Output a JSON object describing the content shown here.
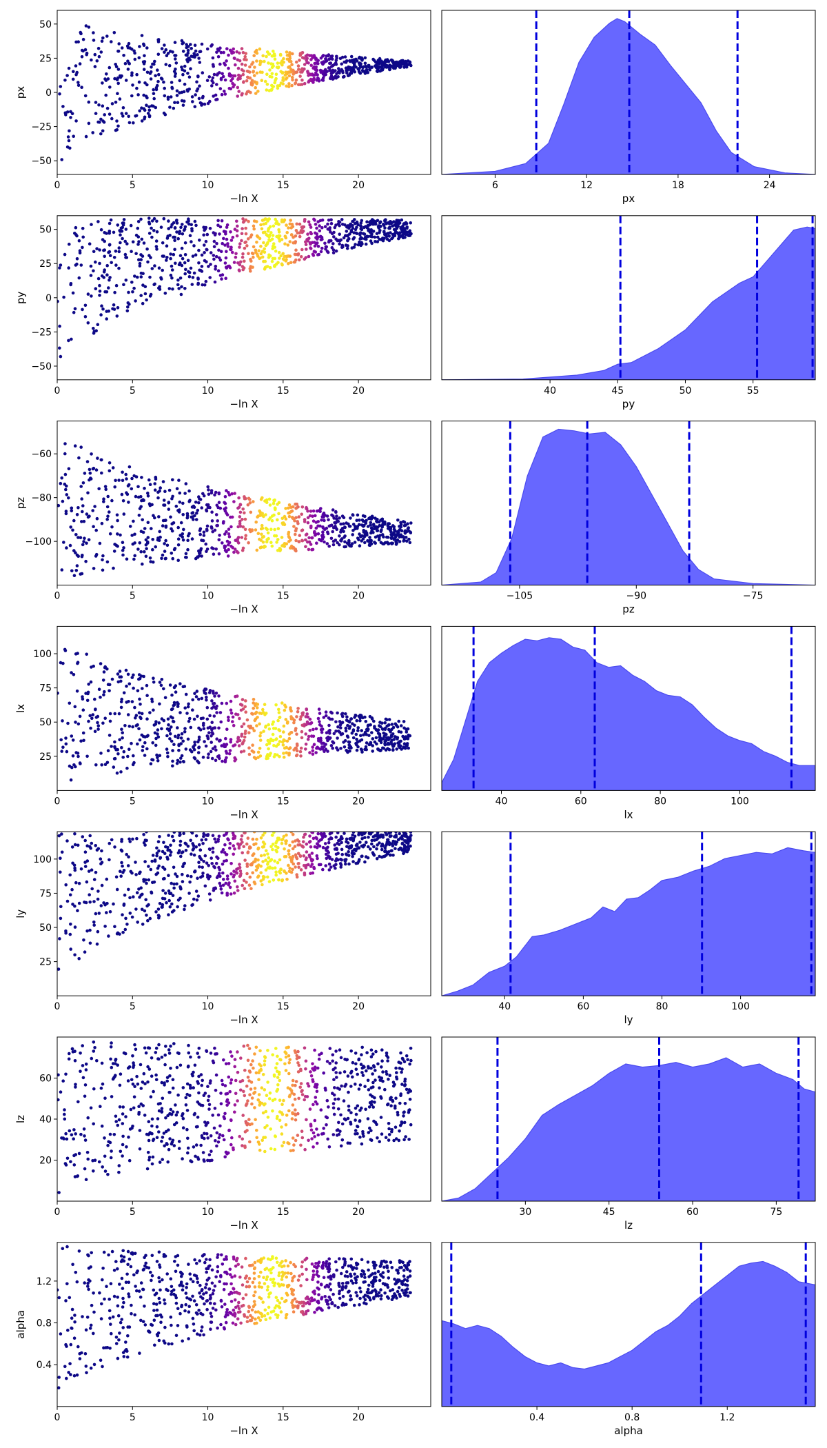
{
  "chart_data": {
    "type": "scatter",
    "xlabel_scatter": "−ln X",
    "colormap": "plasma",
    "kde_color": "#6464ff",
    "quantile_line_color": "#0000dd",
    "scatter_xlim": [
      0,
      24.8
    ],
    "scatter_xticks": [
      0,
      5,
      10,
      15,
      20
    ],
    "peak_lnX": 14.3,
    "panels": [
      {
        "name": "px",
        "scatter": {
          "ylim": [
            -60,
            60
          ],
          "yticks": [
            -50,
            -25,
            0,
            25,
            50
          ],
          "envelope_end": [
            19,
            23
          ],
          "spread_at_zero": [
            -60,
            60
          ]
        },
        "kde": {
          "xlim": [
            2.5,
            27
          ],
          "xticks": [
            6,
            12,
            18,
            24
          ],
          "xticklabels": [
            "6",
            "12",
            "18",
            "24"
          ],
          "quantiles": [
            8.7,
            14.8,
            21.9
          ],
          "curve": [
            [
              2.5,
              0.0
            ],
            [
              6,
              0.02
            ],
            [
              8,
              0.07
            ],
            [
              9.5,
              0.2
            ],
            [
              10.5,
              0.45
            ],
            [
              11.5,
              0.72
            ],
            [
              12.5,
              0.88
            ],
            [
              13.5,
              0.97
            ],
            [
              14,
              1.0
            ],
            [
              14.5,
              0.98
            ],
            [
              15.5,
              0.9
            ],
            [
              16.5,
              0.83
            ],
            [
              17.5,
              0.7
            ],
            [
              18.5,
              0.58
            ],
            [
              19.5,
              0.46
            ],
            [
              20.5,
              0.28
            ],
            [
              21.5,
              0.14
            ],
            [
              23,
              0.05
            ],
            [
              25,
              0.01
            ],
            [
              27,
              0.0
            ]
          ]
        }
      },
      {
        "name": "py",
        "scatter": {
          "ylim": [
            -60,
            60
          ],
          "yticks": [
            -50,
            -25,
            0,
            25,
            50
          ],
          "envelope_end": [
            45,
            57
          ],
          "spread_at_zero": [
            -60,
            60
          ]
        },
        "kde": {
          "xlim": [
            32,
            59.6
          ],
          "xticks": [
            40,
            45,
            50,
            55
          ],
          "xticklabels": [
            "40",
            "45",
            "50",
            "55"
          ],
          "quantiles": [
            45.2,
            55.3,
            59.4
          ],
          "curve": [
            [
              32,
              0.0
            ],
            [
              38,
              0.005
            ],
            [
              42,
              0.03
            ],
            [
              44,
              0.06
            ],
            [
              45,
              0.1
            ],
            [
              46,
              0.11
            ],
            [
              48,
              0.2
            ],
            [
              50,
              0.32
            ],
            [
              52,
              0.5
            ],
            [
              54,
              0.62
            ],
            [
              55,
              0.66
            ],
            [
              56,
              0.76
            ],
            [
              57,
              0.86
            ],
            [
              58,
              0.96
            ],
            [
              59,
              0.98
            ],
            [
              59.6,
              0.97
            ]
          ]
        }
      },
      {
        "name": "pz",
        "scatter": {
          "ylim": [
            -120,
            -45
          ],
          "yticks": [
            -100,
            -80,
            -60
          ],
          "envelope_end": [
            -101,
            -91
          ],
          "spread_at_zero": [
            -120,
            -45
          ]
        },
        "kde": {
          "xlim": [
            -115,
            -67
          ],
          "xticks": [
            -105,
            -90,
            -75
          ],
          "xticklabels": [
            "−105",
            "−90",
            "−75"
          ],
          "quantiles": [
            -106.2,
            -96.3,
            -83.2
          ],
          "curve": [
            [
              -115,
              0.0
            ],
            [
              -110,
              0.02
            ],
            [
              -108,
              0.08
            ],
            [
              -106,
              0.3
            ],
            [
              -104,
              0.7
            ],
            [
              -102,
              0.95
            ],
            [
              -100,
              1.0
            ],
            [
              -98,
              0.99
            ],
            [
              -96,
              0.97
            ],
            [
              -94,
              0.98
            ],
            [
              -92,
              0.9
            ],
            [
              -90,
              0.76
            ],
            [
              -88,
              0.58
            ],
            [
              -86,
              0.4
            ],
            [
              -84,
              0.22
            ],
            [
              -82,
              0.1
            ],
            [
              -80,
              0.04
            ],
            [
              -75,
              0.01
            ],
            [
              -67,
              0.0
            ]
          ]
        }
      },
      {
        "name": "lx",
        "scatter": {
          "ylim": [
            0,
            120
          ],
          "yticks": [
            25,
            50,
            75,
            100
          ],
          "envelope_end": [
            30,
            50
          ],
          "spread_at_zero": [
            0,
            120
          ]
        },
        "kde": {
          "xlim": [
            25,
            119
          ],
          "xticks": [
            40,
            60,
            80,
            100
          ],
          "xticklabels": [
            "40",
            "60",
            "80",
            "100"
          ],
          "quantiles": [
            33,
            63.5,
            113
          ],
          "curve": [
            [
              25,
              0.05
            ],
            [
              28,
              0.2
            ],
            [
              31,
              0.45
            ],
            [
              34,
              0.7
            ],
            [
              37,
              0.82
            ],
            [
              40,
              0.88
            ],
            [
              43,
              0.93
            ],
            [
              46,
              0.97
            ],
            [
              49,
              0.96
            ],
            [
              52,
              0.98
            ],
            [
              55,
              0.97
            ],
            [
              58,
              0.92
            ],
            [
              61,
              0.9
            ],
            [
              64,
              0.82
            ],
            [
              67,
              0.79
            ],
            [
              70,
              0.8
            ],
            [
              73,
              0.74
            ],
            [
              76,
              0.7
            ],
            [
              79,
              0.64
            ],
            [
              82,
              0.61
            ],
            [
              85,
              0.6
            ],
            [
              88,
              0.55
            ],
            [
              91,
              0.47
            ],
            [
              94,
              0.4
            ],
            [
              97,
              0.35
            ],
            [
              100,
              0.32
            ],
            [
              103,
              0.3
            ],
            [
              106,
              0.25
            ],
            [
              109,
              0.22
            ],
            [
              112,
              0.18
            ],
            [
              115,
              0.16
            ],
            [
              119,
              0.16
            ]
          ]
        }
      },
      {
        "name": "ly",
        "scatter": {
          "ylim": [
            0,
            120
          ],
          "yticks": [
            25,
            50,
            75,
            100
          ],
          "envelope_end": [
            105,
            120
          ],
          "spread_at_zero": [
            0,
            120
          ]
        },
        "kde": {
          "xlim": [
            24,
            119
          ],
          "xticks": [
            40,
            60,
            80,
            100
          ],
          "xticklabels": [
            "40",
            "60",
            "80",
            "100"
          ],
          "quantiles": [
            41.5,
            90.2,
            118
          ],
          "curve": [
            [
              24,
              0.0
            ],
            [
              28,
              0.03
            ],
            [
              32,
              0.07
            ],
            [
              36,
              0.15
            ],
            [
              40,
              0.19
            ],
            [
              43,
              0.25
            ],
            [
              47,
              0.38
            ],
            [
              50,
              0.39
            ],
            [
              54,
              0.42
            ],
            [
              58,
              0.46
            ],
            [
              62,
              0.5
            ],
            [
              65,
              0.57
            ],
            [
              68,
              0.54
            ],
            [
              71,
              0.62
            ],
            [
              74,
              0.63
            ],
            [
              77,
              0.68
            ],
            [
              80,
              0.74
            ],
            [
              84,
              0.76
            ],
            [
              88,
              0.8
            ],
            [
              92,
              0.83
            ],
            [
              96,
              0.88
            ],
            [
              100,
              0.9
            ],
            [
              104,
              0.92
            ],
            [
              108,
              0.91
            ],
            [
              112,
              0.95
            ],
            [
              116,
              0.93
            ],
            [
              119,
              0.92
            ]
          ]
        }
      },
      {
        "name": "lz",
        "scatter": {
          "ylim": [
            0,
            80
          ],
          "yticks": [
            20,
            40,
            60
          ],
          "envelope_end": [
            30,
            75
          ],
          "spread_at_zero": [
            0,
            80
          ]
        },
        "kde": {
          "xlim": [
            15,
            82
          ],
          "xticks": [
            30,
            45,
            60,
            75
          ],
          "xticklabels": [
            "30",
            "45",
            "60",
            "75"
          ],
          "quantiles": [
            25,
            54,
            79
          ],
          "curve": [
            [
              15,
              0.0
            ],
            [
              18,
              0.02
            ],
            [
              21,
              0.08
            ],
            [
              24,
              0.18
            ],
            [
              27,
              0.28
            ],
            [
              30,
              0.4
            ],
            [
              33,
              0.55
            ],
            [
              36,
              0.62
            ],
            [
              39,
              0.68
            ],
            [
              42,
              0.74
            ],
            [
              45,
              0.82
            ],
            [
              48,
              0.88
            ],
            [
              51,
              0.86
            ],
            [
              54,
              0.87
            ],
            [
              57,
              0.89
            ],
            [
              60,
              0.86
            ],
            [
              63,
              0.88
            ],
            [
              66,
              0.92
            ],
            [
              69,
              0.86
            ],
            [
              72,
              0.88
            ],
            [
              75,
              0.82
            ],
            [
              78,
              0.78
            ],
            [
              80,
              0.72
            ],
            [
              82,
              0.7
            ]
          ]
        }
      },
      {
        "name": "alpha",
        "scatter": {
          "ylim": [
            0,
            1.57
          ],
          "yticks": [
            0.4,
            0.8,
            1.2
          ],
          "envelope_end": [
            1.05,
            1.4
          ],
          "spread_at_zero": [
            0,
            1.57
          ]
        },
        "kde": {
          "xlim": [
            0,
            1.57
          ],
          "xticks": [
            0.4,
            0.8,
            1.2
          ],
          "xticklabels": [
            "0.4",
            "0.8",
            "1.2"
          ],
          "quantiles": [
            0.04,
            1.09,
            1.53
          ],
          "curve": [
            [
              0,
              0.55
            ],
            [
              0.05,
              0.53
            ],
            [
              0.1,
              0.5
            ],
            [
              0.15,
              0.52
            ],
            [
              0.2,
              0.5
            ],
            [
              0.25,
              0.45
            ],
            [
              0.3,
              0.38
            ],
            [
              0.35,
              0.32
            ],
            [
              0.4,
              0.28
            ],
            [
              0.45,
              0.26
            ],
            [
              0.5,
              0.28
            ],
            [
              0.55,
              0.25
            ],
            [
              0.6,
              0.24
            ],
            [
              0.65,
              0.26
            ],
            [
              0.7,
              0.28
            ],
            [
              0.75,
              0.32
            ],
            [
              0.8,
              0.36
            ],
            [
              0.85,
              0.42
            ],
            [
              0.9,
              0.48
            ],
            [
              0.95,
              0.52
            ],
            [
              1.0,
              0.58
            ],
            [
              1.05,
              0.66
            ],
            [
              1.1,
              0.72
            ],
            [
              1.15,
              0.78
            ],
            [
              1.2,
              0.84
            ],
            [
              1.25,
              0.9
            ],
            [
              1.3,
              0.92
            ],
            [
              1.35,
              0.93
            ],
            [
              1.4,
              0.9
            ],
            [
              1.45,
              0.86
            ],
            [
              1.5,
              0.8
            ],
            [
              1.57,
              0.78
            ]
          ]
        }
      }
    ]
  }
}
